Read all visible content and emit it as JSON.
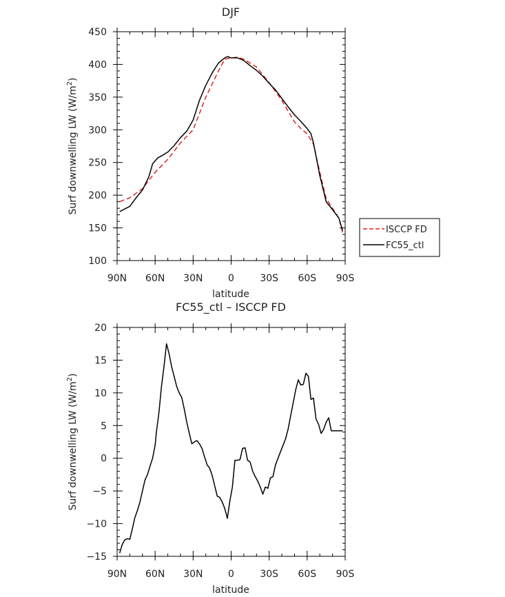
{
  "colors": {
    "isccp": "#e02020",
    "fc55": "#000000",
    "axis": "#000000"
  },
  "chart_data": [
    {
      "type": "line",
      "title": "DJF",
      "xlabel": "latitude",
      "ylabel": "Surf downwelling LW (W/m2)",
      "ylabel_main": "Surf downwelling LW (W/m",
      "ylabel_sup": "2",
      "ylabel_end": ")",
      "xlim": [
        -90,
        90
      ],
      "ylim": [
        100,
        450
      ],
      "x_ticks": [
        -90,
        -60,
        -30,
        0,
        30,
        60,
        90
      ],
      "x_tick_labels": [
        "90N",
        "60N",
        "30N",
        "0",
        "30S",
        "60S",
        "90S"
      ],
      "y_ticks": [
        100,
        150,
        200,
        250,
        300,
        350,
        400,
        450
      ],
      "y_tick_labels": [
        "100",
        "150",
        "200",
        "250",
        "300",
        "350",
        "400",
        "450"
      ],
      "legend_position": "right",
      "series": [
        {
          "name": "ISCCP FD",
          "style": "dashed",
          "color": "#e02020",
          "x": [
            -88,
            -80,
            -70,
            -60,
            -50,
            -40,
            -30,
            -20,
            -10,
            -5,
            0,
            5,
            10,
            20,
            30,
            40,
            50,
            55,
            60,
            65,
            70,
            75,
            80,
            85,
            88
          ],
          "y": [
            190,
            196,
            210,
            235,
            255,
            280,
            300,
            350,
            390,
            408,
            410,
            411,
            408,
            396,
            372,
            345,
            312,
            302,
            294,
            278,
            235,
            195,
            180,
            165,
            143
          ]
        },
        {
          "name": "FC55_ctl",
          "style": "solid",
          "color": "#000000",
          "x": [
            -88,
            -80,
            -75,
            -70,
            -65,
            -62,
            -58,
            -55,
            -50,
            -45,
            -40,
            -35,
            -30,
            -25,
            -20,
            -15,
            -10,
            -5,
            -3,
            0,
            5,
            10,
            15,
            20,
            25,
            30,
            35,
            40,
            45,
            50,
            55,
            60,
            63,
            65,
            70,
            75,
            80,
            85,
            88
          ],
          "y": [
            175,
            183,
            196,
            208,
            228,
            248,
            257,
            260,
            266,
            276,
            288,
            298,
            315,
            345,
            368,
            387,
            402,
            410,
            412,
            410,
            410,
            406,
            398,
            391,
            382,
            371,
            361,
            348,
            335,
            323,
            313,
            302,
            294,
            280,
            230,
            190,
            178,
            165,
            146
          ]
        }
      ]
    },
    {
      "type": "line",
      "title": "FC55_ctl – ISCCP FD",
      "xlabel": "latitude",
      "ylabel": "Surf downwelling LW (W/m2)",
      "ylabel_main": "Surf downwelling LW (W/m",
      "ylabel_sup": "2",
      "ylabel_end": ")",
      "xlim": [
        -90,
        90
      ],
      "ylim": [
        -15,
        20
      ],
      "x_ticks": [
        -90,
        -60,
        -30,
        0,
        30,
        60,
        90
      ],
      "x_tick_labels": [
        "90N",
        "60N",
        "30N",
        "0",
        "30S",
        "60S",
        "90S"
      ],
      "y_ticks": [
        -15,
        -10,
        -5,
        0,
        5,
        10,
        15,
        20
      ],
      "y_tick_labels": [
        "−15",
        "−10",
        "−5",
        "0",
        "5",
        "10",
        "15",
        "20"
      ],
      "series": [
        {
          "style": "solid",
          "color": "#000000",
          "x": [
            -88,
            -86,
            -84,
            -82,
            -80,
            -78,
            -76,
            -74,
            -72,
            -70,
            -68,
            -66,
            -64,
            -62,
            -60,
            -59,
            -57,
            -55,
            -53,
            -51,
            -49,
            -47,
            -45,
            -43,
            -41,
            -39,
            -37,
            -35,
            -33,
            -31,
            -29,
            -27,
            -25,
            -23,
            -21,
            -19,
            -17,
            -15,
            -13,
            -11,
            -9,
            -7,
            -5,
            -3,
            -1,
            1,
            3,
            5,
            7,
            9,
            11,
            13,
            15,
            17,
            19,
            21,
            23,
            25,
            27,
            29,
            31,
            33,
            35,
            37,
            39,
            41,
            43,
            45,
            47,
            49,
            51,
            53,
            55,
            57,
            59,
            61,
            63,
            65,
            67,
            69,
            71,
            73,
            75,
            77,
            79,
            81,
            83,
            85,
            87,
            88
          ],
          "y": [
            -14.5,
            -13.2,
            -12.5,
            -12.3,
            -12.4,
            -10.8,
            -9.1,
            -8.0,
            -6.7,
            -5.0,
            -3.3,
            -2.5,
            -1.2,
            0.0,
            2.0,
            4.0,
            7.0,
            11.0,
            14.0,
            17.5,
            16.0,
            14.0,
            12.5,
            11.0,
            10.0,
            9.3,
            7.5,
            5.5,
            3.8,
            2.2,
            2.5,
            2.7,
            2.2,
            1.5,
            0.2,
            -1.0,
            -1.5,
            -2.6,
            -4.2,
            -5.8,
            -6.0,
            -6.7,
            -7.7,
            -9.2,
            -6.5,
            -4.4,
            -0.3,
            -0.3,
            -0.2,
            1.5,
            1.6,
            -0.3,
            -0.6,
            -2.0,
            -2.8,
            -3.5,
            -4.4,
            -5.5,
            -4.4,
            -4.6,
            -3.0,
            -2.8,
            -1.0,
            0.0,
            1.0,
            2.0,
            3.0,
            4.5,
            6.5,
            8.5,
            10.5,
            12.0,
            11.2,
            11.3,
            13.0,
            12.5,
            9.0,
            9.2,
            6.0,
            5.2,
            3.8,
            4.4,
            5.5,
            6.2,
            4.2,
            4.2,
            4.2,
            4.2,
            4.2,
            4.2
          ]
        }
      ]
    }
  ]
}
